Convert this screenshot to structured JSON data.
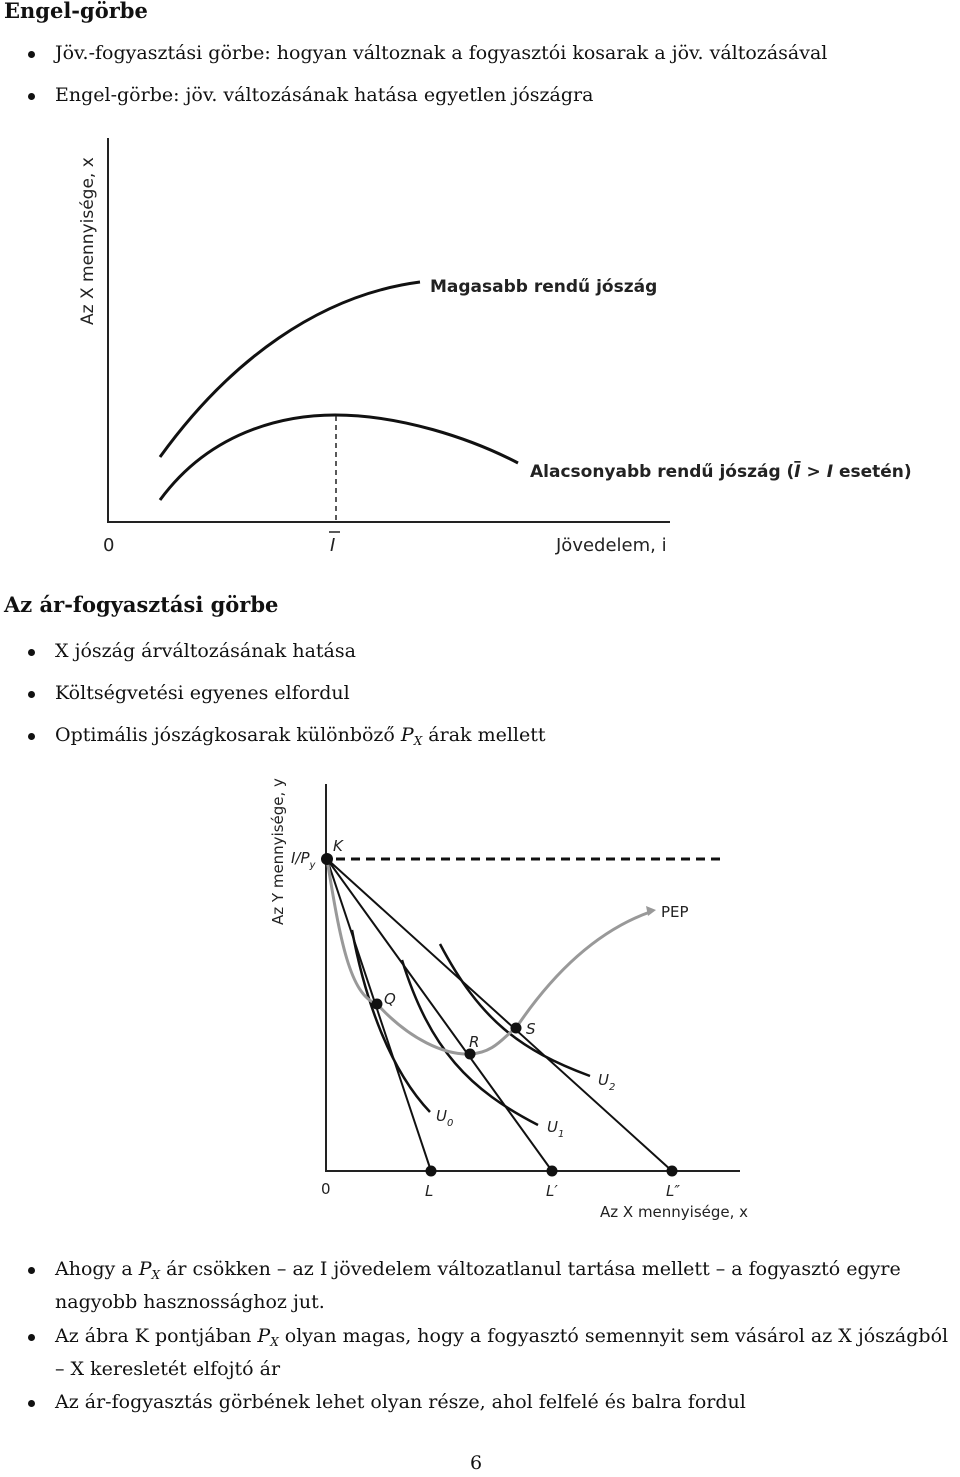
{
  "section1": {
    "title": "Engel-görbe",
    "bullets": [
      "Jöv.-fogyasztási görbe: hogyan változnak a fogyasztói kosarak a jöv. változásával",
      "Engel-görbe: jöv. változásának hatása egyetlen jószágra"
    ]
  },
  "figure1": {
    "ylabel": "Az X mennyisége, x",
    "xlabel": "Jövedelem, i",
    "origin": "0",
    "ibar": "I",
    "upper_curve_label": "Magasabb rendű jószág",
    "lower_curve_label_main": "Alacsonyabb rendű jószág (",
    "lower_curve_label_ibar": "I",
    "lower_curve_label_gt": " > ",
    "lower_curve_label_i": "I",
    "lower_curve_label_end": " esetén)"
  },
  "section2": {
    "title": "Az ár-fogyasztási görbe",
    "bullets": [
      "X jószág árváltozásának hatása",
      "Költségvetési egyenes elfordul"
    ],
    "bullet3_prefix": "Optimális jószágkosarak különböző ",
    "bullet3_P": "P",
    "bullet3_sub": "X",
    "bullet3_suffix": " árak mellett"
  },
  "figure2": {
    "ylabel": "Az Y mennyisége, y",
    "xlabel": "Az X mennyisége, x",
    "origin": "0",
    "intercept_I": "I/P",
    "intercept_sub": "y",
    "points": {
      "K": "K",
      "Q": "Q",
      "R": "R",
      "S": "S",
      "L": "L",
      "L1": "L′",
      "L2": "L″"
    },
    "pep": "PEP",
    "U0": "U",
    "U0_sub": "0",
    "U1": "U",
    "U1_sub": "1",
    "U2": "U",
    "U2_sub": "2"
  },
  "section3": {
    "b1_a": "Ahogy a ",
    "b1_P": "P",
    "b1_sub": "X",
    "b1_b": " ár csökken – az I jövedelem változatlanul tartása mellett – a fogyasztó egyre nagyobb hasznossághoz jut.",
    "b2_a": "Az ábra K pontjában ",
    "b2_P": "P",
    "b2_sub": "X",
    "b2_b": " olyan magas, hogy a fogyasztó semennyit sem vásárol az X jószágból – X keresletét elfojtó ár",
    "b3": "Az ár-fogyasztás görbének lehet olyan része, ahol felfelé és balra fordul"
  },
  "page_number": "6"
}
